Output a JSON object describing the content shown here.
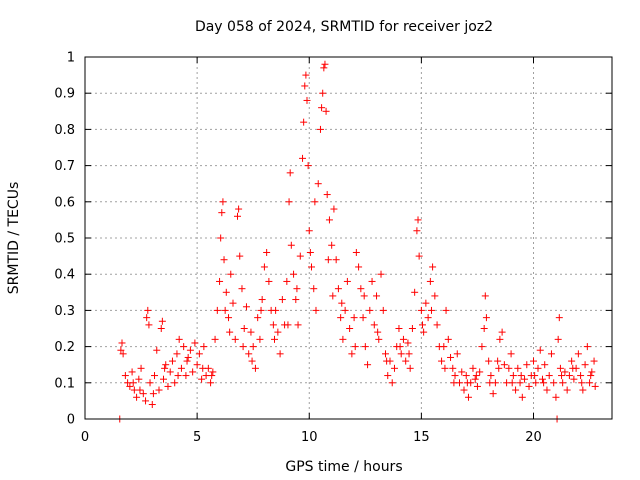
{
  "chart_data": {
    "type": "scatter",
    "title": "Day 058 of 2024, SRMTID for receiver joz2",
    "xlabel": "GPS time / hours",
    "ylabel": "SRMTID / TECUs",
    "xlim": [
      0,
      23.5
    ],
    "ylim": [
      0,
      1
    ],
    "xticks": [
      0,
      5,
      10,
      15,
      20
    ],
    "xtick_labels": [
      "0",
      "5",
      "10",
      "15",
      "20"
    ],
    "yticks": [
      0,
      0.1,
      0.2,
      0.3,
      0.4,
      0.5,
      0.6,
      0.7,
      0.8,
      0.9,
      1
    ],
    "ytick_labels": [
      "0",
      "0.1",
      "0.2",
      "0.3",
      "0.4",
      "0.5",
      "0.6",
      "0.7",
      "0.8",
      "0.9",
      "1"
    ],
    "grid": true,
    "marker": "plus",
    "color": "#ff0000",
    "series": [
      {
        "name": "SRMTID",
        "points": [
          [
            1.55,
            0.0
          ],
          [
            1.6,
            0.19
          ],
          [
            1.65,
            0.21
          ],
          [
            1.7,
            0.18
          ],
          [
            1.8,
            0.12
          ],
          [
            1.9,
            0.1
          ],
          [
            2.0,
            0.09
          ],
          [
            2.1,
            0.13
          ],
          [
            2.2,
            0.08
          ],
          [
            2.3,
            0.06
          ],
          [
            2.4,
            0.11
          ],
          [
            2.5,
            0.14
          ],
          [
            2.6,
            0.07
          ],
          [
            2.7,
            0.05
          ],
          [
            2.75,
            0.28
          ],
          [
            2.8,
            0.3
          ],
          [
            2.85,
            0.26
          ],
          [
            2.9,
            0.1
          ],
          [
            3.0,
            0.04
          ],
          [
            3.1,
            0.12
          ],
          [
            3.2,
            0.19
          ],
          [
            3.3,
            0.08
          ],
          [
            3.4,
            0.25
          ],
          [
            3.45,
            0.27
          ],
          [
            3.5,
            0.11
          ],
          [
            3.6,
            0.15
          ],
          [
            3.7,
            0.09
          ],
          [
            3.8,
            0.13
          ],
          [
            3.9,
            0.16
          ],
          [
            4.0,
            0.1
          ],
          [
            4.1,
            0.18
          ],
          [
            4.2,
            0.22
          ],
          [
            4.3,
            0.14
          ],
          [
            4.4,
            0.2
          ],
          [
            4.5,
            0.12
          ],
          [
            4.6,
            0.17
          ],
          [
            4.7,
            0.19
          ],
          [
            4.8,
            0.13
          ],
          [
            4.9,
            0.21
          ],
          [
            5.0,
            0.15
          ],
          [
            5.1,
            0.18
          ],
          [
            5.2,
            0.11
          ],
          [
            5.3,
            0.2
          ],
          [
            5.4,
            0.12
          ],
          [
            5.5,
            0.14
          ],
          [
            5.6,
            0.1
          ],
          [
            5.7,
            0.13
          ],
          [
            5.8,
            0.22
          ],
          [
            5.9,
            0.3
          ],
          [
            6.0,
            0.38
          ],
          [
            6.05,
            0.5
          ],
          [
            6.1,
            0.57
          ],
          [
            6.15,
            0.6
          ],
          [
            6.2,
            0.44
          ],
          [
            6.3,
            0.35
          ],
          [
            6.4,
            0.28
          ],
          [
            6.5,
            0.4
          ],
          [
            6.6,
            0.32
          ],
          [
            6.7,
            0.22
          ],
          [
            6.8,
            0.56
          ],
          [
            6.85,
            0.58
          ],
          [
            6.9,
            0.45
          ],
          [
            7.0,
            0.36
          ],
          [
            7.1,
            0.25
          ],
          [
            7.2,
            0.31
          ],
          [
            7.3,
            0.18
          ],
          [
            7.4,
            0.24
          ],
          [
            7.5,
            0.2
          ],
          [
            7.6,
            0.14
          ],
          [
            7.7,
            0.28
          ],
          [
            7.8,
            0.22
          ],
          [
            7.9,
            0.33
          ],
          [
            8.0,
            0.42
          ],
          [
            8.1,
            0.46
          ],
          [
            8.2,
            0.38
          ],
          [
            8.3,
            0.3
          ],
          [
            8.4,
            0.26
          ],
          [
            8.5,
            0.3
          ],
          [
            8.6,
            0.24
          ],
          [
            8.7,
            0.18
          ],
          [
            8.8,
            0.33
          ],
          [
            8.9,
            0.26
          ],
          [
            9.0,
            0.38
          ],
          [
            9.1,
            0.6
          ],
          [
            9.15,
            0.68
          ],
          [
            9.2,
            0.48
          ],
          [
            9.3,
            0.4
          ],
          [
            9.4,
            0.33
          ],
          [
            9.5,
            0.26
          ],
          [
            9.6,
            0.45
          ],
          [
            9.7,
            0.72
          ],
          [
            9.75,
            0.82
          ],
          [
            9.8,
            0.92
          ],
          [
            9.85,
            0.95
          ],
          [
            9.9,
            0.88
          ],
          [
            9.95,
            0.7
          ],
          [
            10.0,
            0.52
          ],
          [
            10.1,
            0.42
          ],
          [
            10.2,
            0.36
          ],
          [
            10.3,
            0.3
          ],
          [
            10.4,
            0.65
          ],
          [
            10.5,
            0.8
          ],
          [
            10.55,
            0.86
          ],
          [
            10.6,
            0.9
          ],
          [
            10.65,
            0.97
          ],
          [
            10.7,
            0.98
          ],
          [
            10.75,
            0.85
          ],
          [
            10.8,
            0.62
          ],
          [
            10.9,
            0.55
          ],
          [
            11.0,
            0.48
          ],
          [
            11.1,
            0.58
          ],
          [
            11.2,
            0.44
          ],
          [
            11.3,
            0.36
          ],
          [
            11.4,
            0.28
          ],
          [
            11.5,
            0.22
          ],
          [
            11.6,
            0.3
          ],
          [
            11.7,
            0.38
          ],
          [
            11.8,
            0.25
          ],
          [
            11.9,
            0.18
          ],
          [
            12.0,
            0.28
          ],
          [
            12.1,
            0.46
          ],
          [
            12.2,
            0.42
          ],
          [
            12.3,
            0.36
          ],
          [
            12.4,
            0.28
          ],
          [
            12.5,
            0.2
          ],
          [
            12.6,
            0.15
          ],
          [
            12.7,
            0.3
          ],
          [
            12.8,
            0.38
          ],
          [
            12.9,
            0.26
          ],
          [
            13.0,
            0.34
          ],
          [
            13.1,
            0.22
          ],
          [
            13.2,
            0.4
          ],
          [
            13.3,
            0.3
          ],
          [
            13.4,
            0.18
          ],
          [
            13.5,
            0.12
          ],
          [
            13.6,
            0.16
          ],
          [
            13.7,
            0.1
          ],
          [
            13.8,
            0.14
          ],
          [
            13.9,
            0.2
          ],
          [
            14.0,
            0.25
          ],
          [
            14.1,
            0.18
          ],
          [
            14.2,
            0.22
          ],
          [
            14.3,
            0.16
          ],
          [
            14.4,
            0.21
          ],
          [
            14.5,
            0.14
          ],
          [
            14.6,
            0.25
          ],
          [
            14.7,
            0.35
          ],
          [
            14.8,
            0.52
          ],
          [
            14.85,
            0.55
          ],
          [
            14.9,
            0.45
          ],
          [
            15.0,
            0.3
          ],
          [
            15.1,
            0.24
          ],
          [
            15.2,
            0.32
          ],
          [
            15.3,
            0.28
          ],
          [
            15.4,
            0.38
          ],
          [
            15.5,
            0.42
          ],
          [
            15.6,
            0.34
          ],
          [
            15.7,
            0.26
          ],
          [
            15.8,
            0.2
          ],
          [
            15.9,
            0.16
          ],
          [
            16.0,
            0.2
          ],
          [
            16.1,
            0.3
          ],
          [
            16.2,
            0.22
          ],
          [
            16.3,
            0.17
          ],
          [
            16.4,
            0.14
          ],
          [
            16.5,
            0.12
          ],
          [
            16.6,
            0.18
          ],
          [
            16.7,
            0.1
          ],
          [
            16.8,
            0.13
          ],
          [
            16.9,
            0.08
          ],
          [
            17.0,
            0.12
          ],
          [
            17.1,
            0.06
          ],
          [
            17.2,
            0.1
          ],
          [
            17.3,
            0.14
          ],
          [
            17.4,
            0.11
          ],
          [
            17.5,
            0.09
          ],
          [
            17.6,
            0.13
          ],
          [
            17.7,
            0.2
          ],
          [
            17.8,
            0.25
          ],
          [
            17.85,
            0.34
          ],
          [
            17.9,
            0.28
          ],
          [
            18.0,
            0.16
          ],
          [
            18.1,
            0.12
          ],
          [
            18.2,
            0.07
          ],
          [
            18.3,
            0.1
          ],
          [
            18.4,
            0.16
          ],
          [
            18.5,
            0.22
          ],
          [
            18.6,
            0.24
          ],
          [
            18.7,
            0.15
          ],
          [
            18.8,
            0.1
          ],
          [
            18.9,
            0.14
          ],
          [
            19.0,
            0.18
          ],
          [
            19.1,
            0.12
          ],
          [
            19.2,
            0.08
          ],
          [
            19.3,
            0.14
          ],
          [
            19.4,
            0.1
          ],
          [
            19.5,
            0.06
          ],
          [
            19.6,
            0.11
          ],
          [
            19.7,
            0.15
          ],
          [
            19.8,
            0.09
          ],
          [
            19.9,
            0.12
          ],
          [
            20.0,
            0.16
          ],
          [
            20.1,
            0.1
          ],
          [
            20.2,
            0.14
          ],
          [
            20.3,
            0.19
          ],
          [
            20.4,
            0.11
          ],
          [
            20.5,
            0.15
          ],
          [
            20.6,
            0.08
          ],
          [
            20.7,
            0.12
          ],
          [
            20.8,
            0.18
          ],
          [
            20.9,
            0.1
          ],
          [
            21.0,
            0.06
          ],
          [
            21.05,
            0.0
          ],
          [
            21.1,
            0.22
          ],
          [
            21.15,
            0.28
          ],
          [
            21.2,
            0.14
          ],
          [
            21.3,
            0.1
          ],
          [
            21.4,
            0.13
          ],
          [
            21.5,
            0.08
          ],
          [
            21.6,
            0.12
          ],
          [
            21.7,
            0.16
          ],
          [
            21.8,
            0.11
          ],
          [
            21.9,
            0.14
          ],
          [
            22.0,
            0.18
          ],
          [
            22.1,
            0.12
          ],
          [
            22.2,
            0.08
          ],
          [
            22.3,
            0.15
          ],
          [
            22.4,
            0.2
          ],
          [
            22.5,
            0.1
          ],
          [
            22.6,
            0.13
          ],
          [
            22.7,
            0.16
          ],
          [
            22.75,
            0.09
          ],
          [
            2.15,
            0.1
          ],
          [
            2.45,
            0.08
          ],
          [
            3.05,
            0.07
          ],
          [
            3.55,
            0.14
          ],
          [
            4.15,
            0.12
          ],
          [
            4.55,
            0.16
          ],
          [
            5.25,
            0.14
          ],
          [
            5.65,
            0.12
          ],
          [
            6.25,
            0.3
          ],
          [
            6.45,
            0.24
          ],
          [
            7.05,
            0.2
          ],
          [
            7.45,
            0.16
          ],
          [
            7.85,
            0.3
          ],
          [
            8.45,
            0.22
          ],
          [
            9.05,
            0.26
          ],
          [
            9.45,
            0.36
          ],
          [
            10.05,
            0.46
          ],
          [
            10.25,
            0.6
          ],
          [
            10.85,
            0.44
          ],
          [
            11.05,
            0.34
          ],
          [
            11.45,
            0.32
          ],
          [
            12.05,
            0.2
          ],
          [
            12.45,
            0.34
          ],
          [
            13.05,
            0.24
          ],
          [
            13.45,
            0.16
          ],
          [
            14.05,
            0.2
          ],
          [
            14.45,
            0.18
          ],
          [
            15.05,
            0.26
          ],
          [
            15.45,
            0.3
          ],
          [
            16.05,
            0.14
          ],
          [
            16.45,
            0.1
          ],
          [
            17.05,
            0.1
          ],
          [
            17.45,
            0.12
          ],
          [
            18.05,
            0.1
          ],
          [
            18.45,
            0.14
          ],
          [
            19.05,
            0.1
          ],
          [
            19.45,
            0.12
          ],
          [
            20.05,
            0.12
          ],
          [
            20.45,
            0.1
          ],
          [
            21.25,
            0.12
          ],
          [
            21.75,
            0.14
          ],
          [
            22.15,
            0.1
          ],
          [
            22.55,
            0.12
          ]
        ]
      }
    ]
  }
}
